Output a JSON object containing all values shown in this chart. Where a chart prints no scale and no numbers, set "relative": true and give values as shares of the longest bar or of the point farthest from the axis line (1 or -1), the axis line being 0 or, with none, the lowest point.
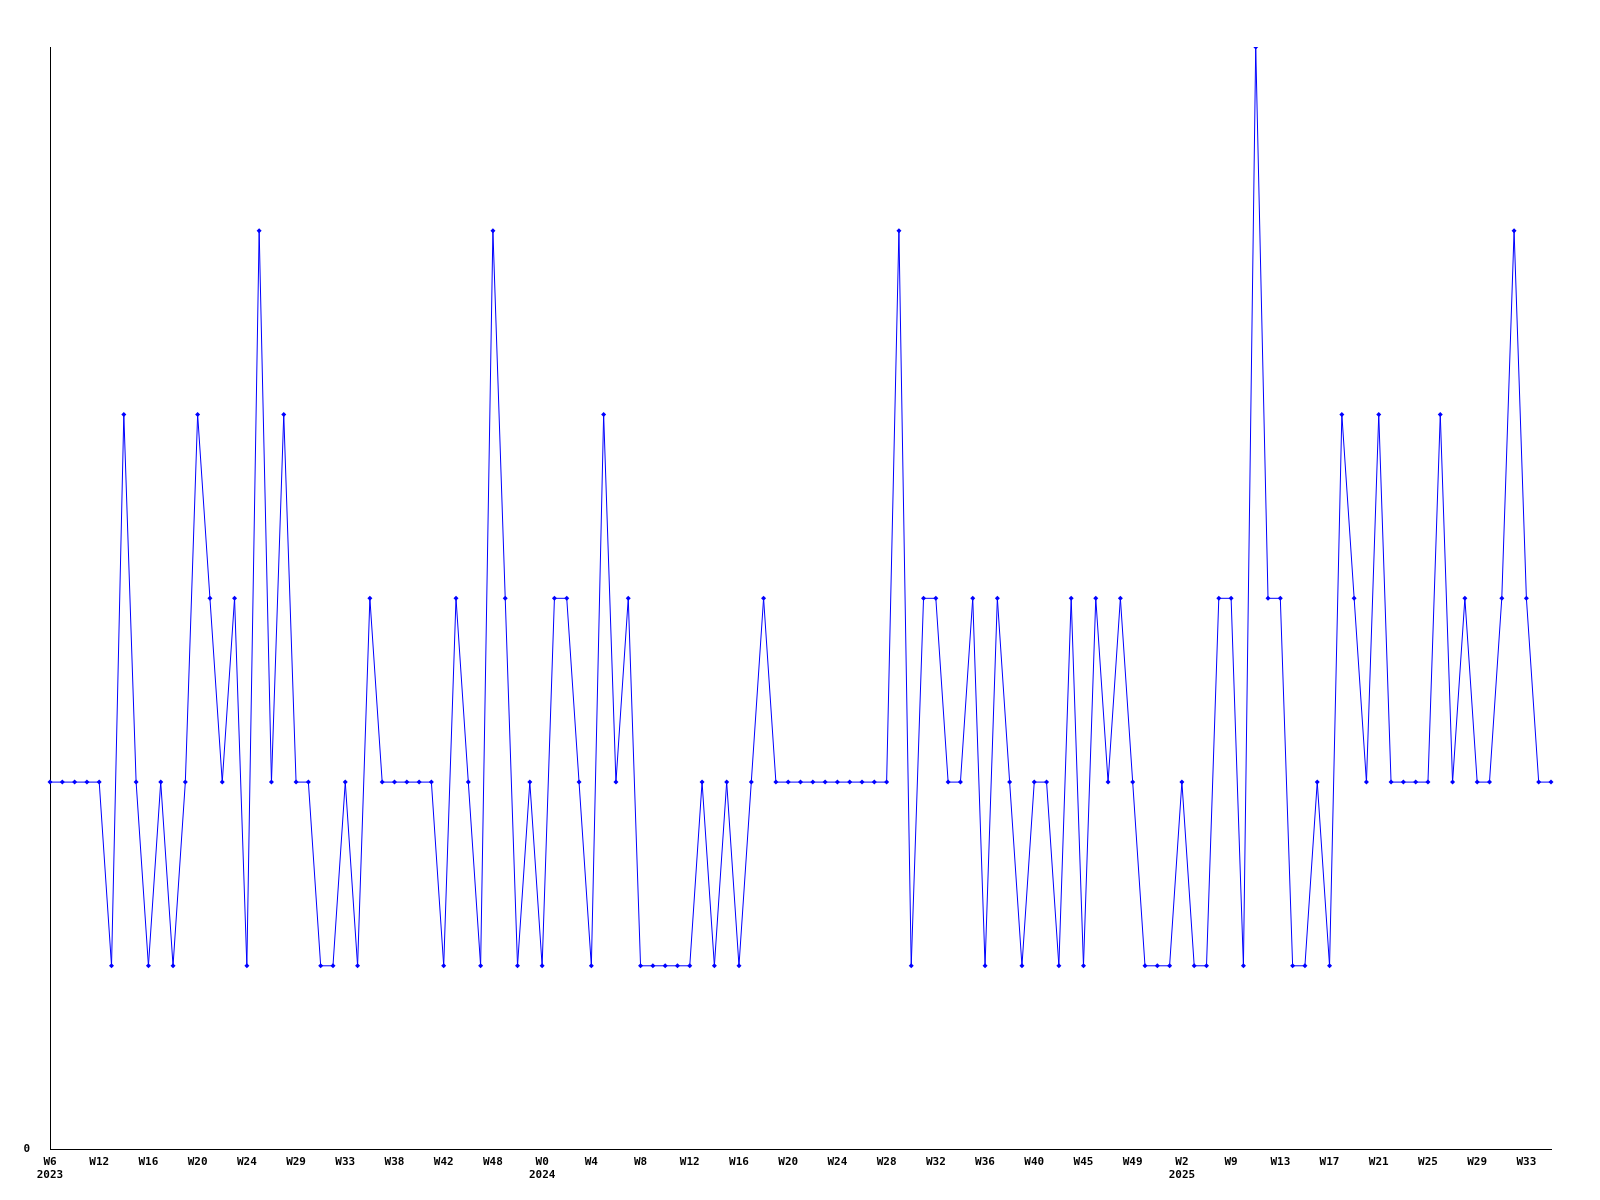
{
  "chart_data": {
    "type": "line",
    "relative": true,
    "color": "#0000ff",
    "marker": "diamond",
    "grid": false,
    "legend": false,
    "tick_labels": "x",
    "annotations": [
      "0"
    ],
    "categories": [
      "W6\n2023",
      null,
      null,
      null,
      "W12",
      null,
      null,
      null,
      "W16",
      null,
      null,
      null,
      "W20",
      null,
      null,
      null,
      "W24",
      null,
      null,
      null,
      "W29",
      null,
      null,
      null,
      "W33",
      null,
      null,
      null,
      "W38",
      null,
      null,
      null,
      "W42",
      null,
      null,
      null,
      "W48",
      null,
      null,
      null,
      "W0\n2024",
      null,
      null,
      null,
      "W4",
      null,
      null,
      null,
      "W8",
      null,
      null,
      null,
      "W12",
      null,
      null,
      null,
      "W16",
      null,
      null,
      null,
      "W20",
      null,
      null,
      null,
      "W24",
      null,
      null,
      null,
      "W28",
      null,
      null,
      null,
      "W32",
      null,
      null,
      null,
      "W36",
      null,
      null,
      null,
      "W40",
      null,
      null,
      null,
      "W45",
      null,
      null,
      null,
      "W49",
      null,
      null,
      null,
      "W2\n2025",
      null,
      null,
      null,
      "W9",
      null,
      null,
      null,
      "W13",
      null,
      null,
      null,
      "W17",
      null,
      null,
      null,
      "W21",
      null,
      null,
      null,
      "W25",
      null,
      null,
      null,
      "W29",
      null,
      null,
      null,
      "W33",
      null,
      null
    ],
    "values": [
      0.3333,
      0.3333,
      0.3333,
      0.3333,
      0.3333,
      0.1667,
      0.6667,
      0.3333,
      0.1667,
      0.3333,
      0.1667,
      0.3333,
      0.6667,
      0.5,
      0.3333,
      0.5,
      0.1667,
      0.8333,
      0.3333,
      0.6667,
      0.3333,
      0.3333,
      0.1667,
      0.1667,
      0.3333,
      0.1667,
      0.5,
      0.3333,
      0.3333,
      0.3333,
      0.3333,
      0.3333,
      0.1667,
      0.5,
      0.3333,
      0.1667,
      0.8333,
      0.5,
      0.1667,
      0.3333,
      0.1667,
      0.5,
      0.5,
      0.3333,
      0.1667,
      0.6667,
      0.3333,
      0.5,
      0.1667,
      0.1667,
      0.1667,
      0.1667,
      0.1667,
      0.3333,
      0.1667,
      0.3333,
      0.1667,
      0.3333,
      0.5,
      0.3333,
      0.3333,
      0.3333,
      0.3333,
      0.3333,
      0.3333,
      0.3333,
      0.3333,
      0.3333,
      0.3333,
      0.8333,
      0.1667,
      0.5,
      0.5,
      0.3333,
      0.3333,
      0.5,
      0.1667,
      0.5,
      0.3333,
      0.1667,
      0.3333,
      0.3333,
      0.1667,
      0.5,
      0.1667,
      0.5,
      0.3333,
      0.5,
      0.3333,
      0.1667,
      0.1667,
      0.1667,
      0.3333,
      0.1667,
      0.1667,
      0.5,
      0.5,
      0.1667,
      1,
      0.5,
      0.5,
      0.1667,
      0.1667,
      0.3333,
      0.1667,
      0.6667,
      0.5,
      0.3333,
      0.6667,
      0.3333,
      0.3333,
      0.3333,
      0.3333,
      0.6667,
      0.3333,
      0.5,
      0.3333,
      0.3333,
      0.5,
      0.8333,
      0.5,
      0.3333,
      0.3333
    ]
  }
}
